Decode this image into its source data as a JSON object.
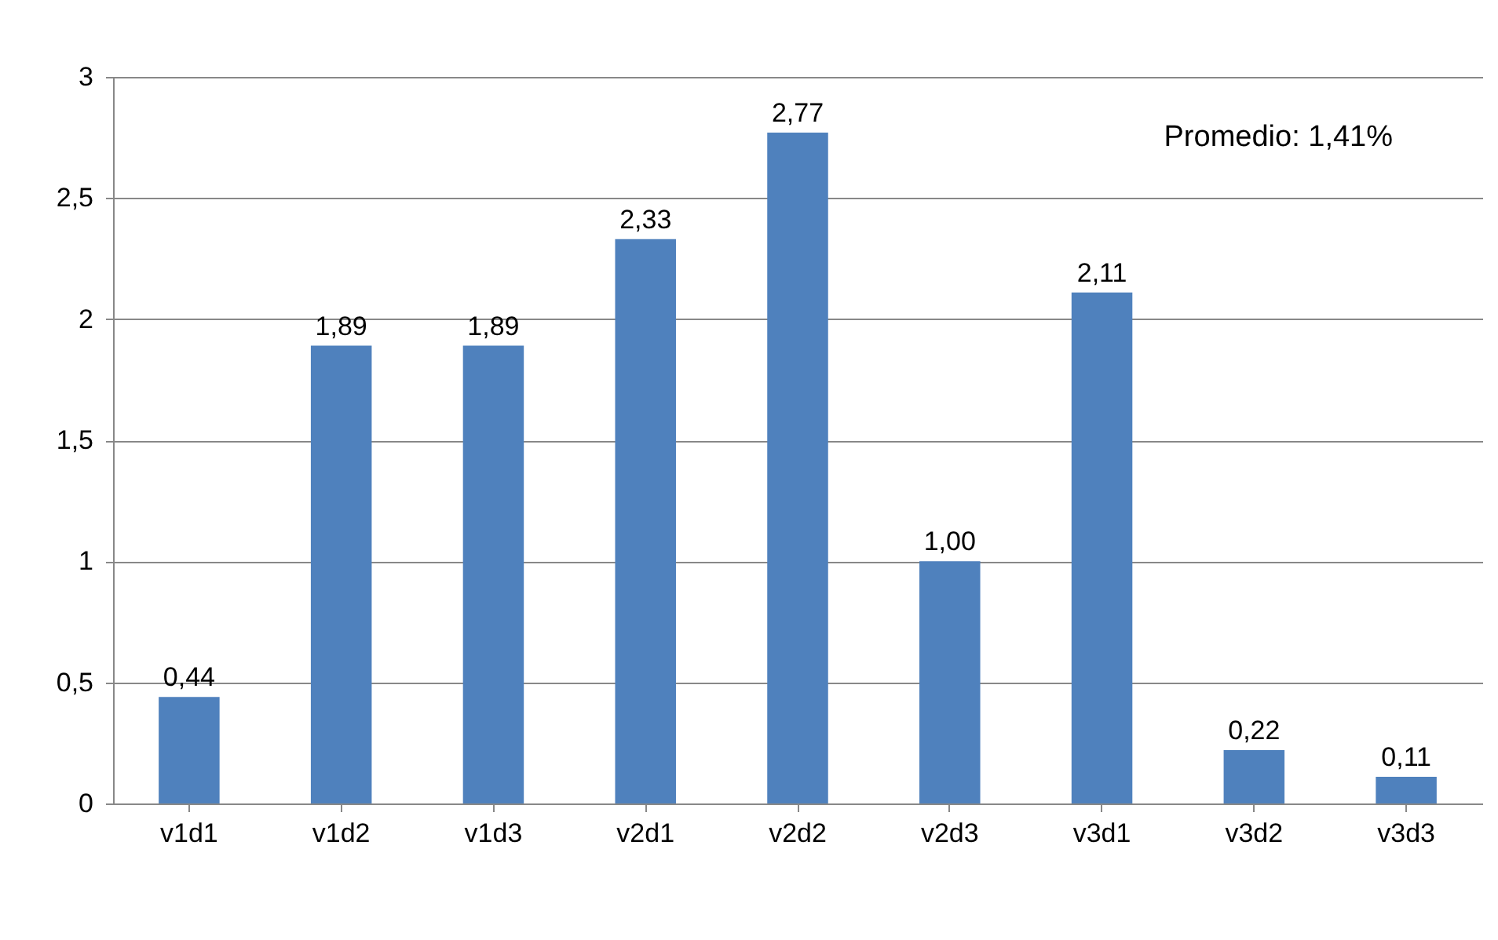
{
  "chart_data": {
    "type": "bar",
    "categories": [
      "v1d1",
      "v1d2",
      "v1d3",
      "v2d1",
      "v2d2",
      "v2d3",
      "v3d1",
      "v3d2",
      "v3d3"
    ],
    "values": [
      0.44,
      1.89,
      1.89,
      2.33,
      2.77,
      1.0,
      2.11,
      0.22,
      0.11
    ],
    "value_labels": [
      "0,44",
      "1,89",
      "1,89",
      "2,33",
      "2,77",
      "1,00",
      "2,11",
      "0,22",
      "0,11"
    ],
    "color": "#4f81bd",
    "ylim": [
      0,
      3
    ],
    "yticks": [
      0,
      {
        "value": 0.5,
        "label": "0,5"
      },
      1,
      {
        "value": 1.5,
        "label": "1,5"
      },
      2,
      {
        "value": 2.5,
        "label": "2,5"
      },
      3
    ],
    "grid": "y",
    "annotations": [
      "Promedio: 1,41%"
    ]
  }
}
